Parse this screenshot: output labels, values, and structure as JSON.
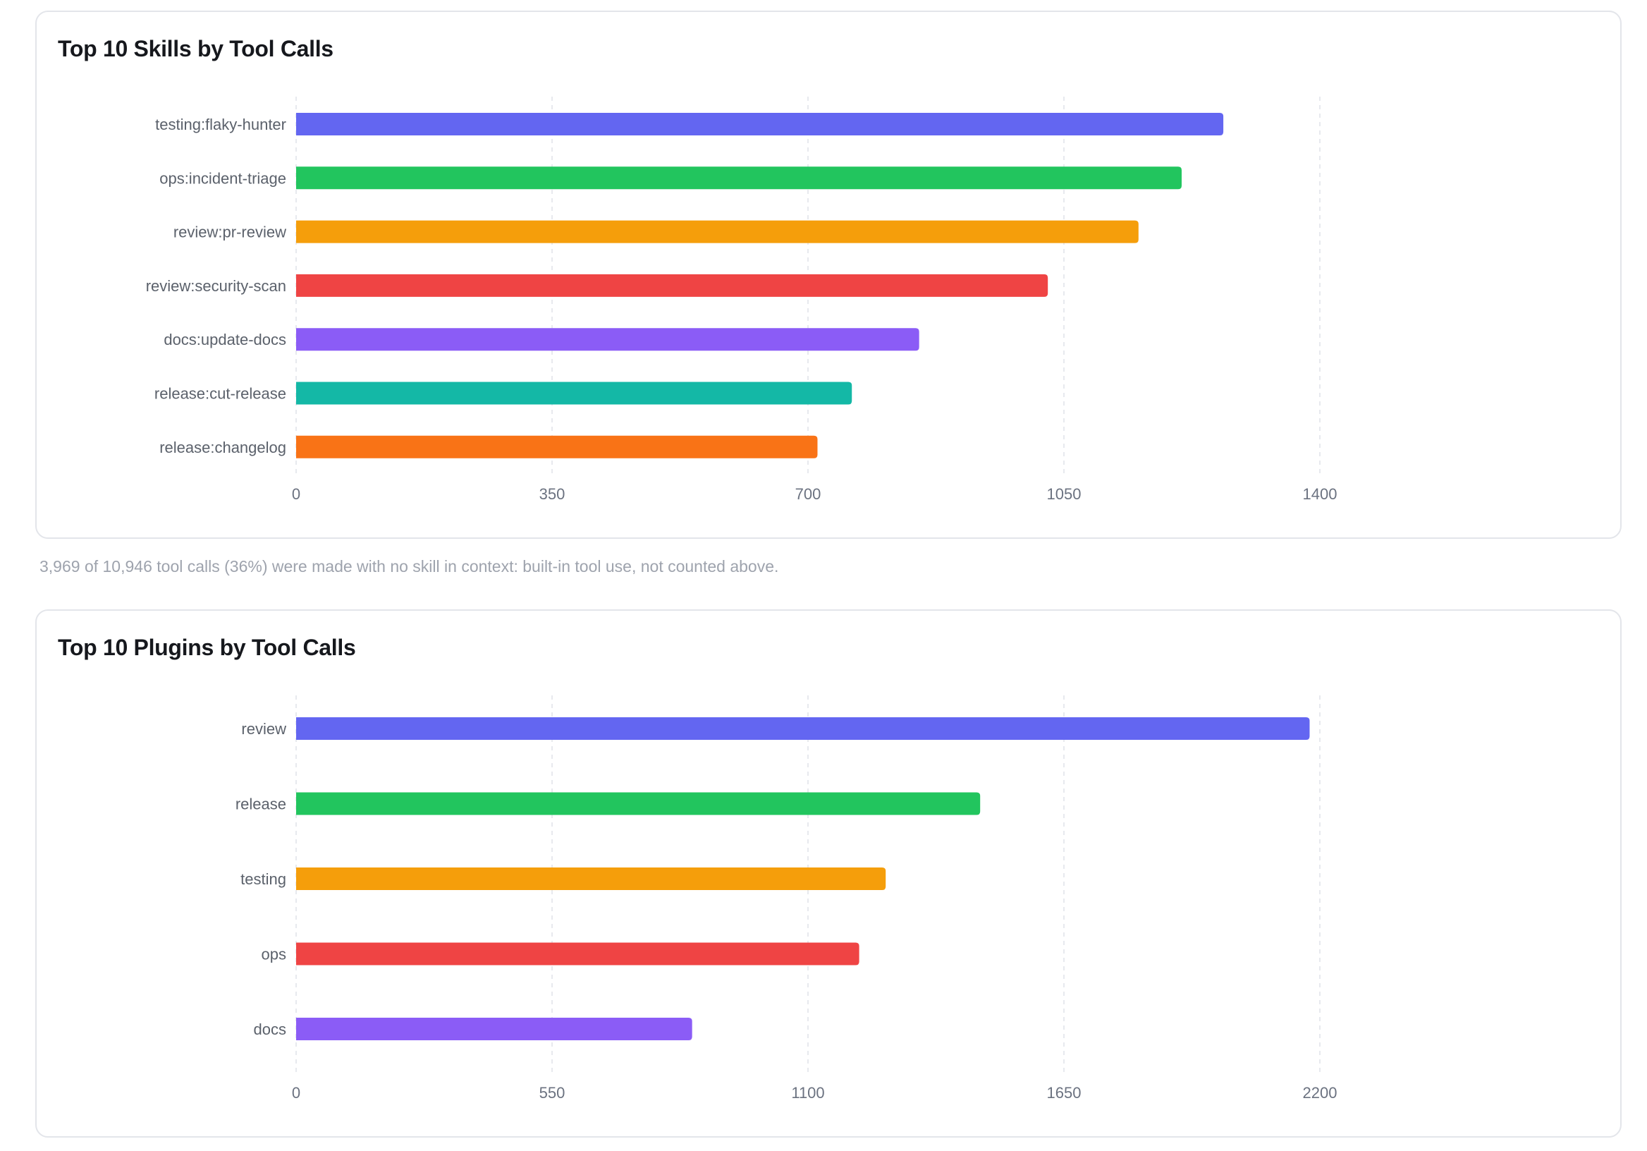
{
  "chart_data": [
    {
      "type": "bar",
      "orientation": "horizontal",
      "title": "Top 10 Skills by Tool Calls",
      "xlabel": "",
      "ylabel": "",
      "categories": [
        "testing:flaky-hunter",
        "ops:incident-triage",
        "review:pr-review",
        "review:security-scan",
        "docs:update-docs",
        "release:cut-release",
        "release:changelog"
      ],
      "values": [
        1268,
        1211,
        1152,
        1028,
        852,
        760,
        713
      ],
      "colors": [
        "#6366f1",
        "#22c55e",
        "#f59e0b",
        "#ef4444",
        "#8b5cf6",
        "#14b8a6",
        "#f97316"
      ],
      "xlim": [
        0,
        1400
      ],
      "ticks": [
        0,
        350,
        700,
        1050,
        1400
      ],
      "tick_labels": [
        "0",
        "350",
        "700",
        "1050",
        "1400"
      ],
      "grid": true,
      "legend": "none"
    },
    {
      "type": "bar",
      "orientation": "horizontal",
      "title": "Top 10 Plugins by Tool Calls",
      "xlabel": "",
      "ylabel": "",
      "categories": [
        "review",
        "release",
        "testing",
        "ops",
        "docs"
      ],
      "values": [
        2178,
        1470,
        1267,
        1210,
        851
      ],
      "colors": [
        "#6366f1",
        "#22c55e",
        "#f59e0b",
        "#ef4444",
        "#8b5cf6"
      ],
      "xlim": [
        0,
        2200
      ],
      "ticks": [
        0,
        550,
        1100,
        1650,
        2200
      ],
      "tick_labels": [
        "0",
        "550",
        "1100",
        "1650",
        "2200"
      ],
      "grid": true,
      "legend": "none"
    }
  ],
  "footnote": "3,969 of 10,946 tool calls (36%) were made with no skill in context: built-in tool use, not counted above."
}
